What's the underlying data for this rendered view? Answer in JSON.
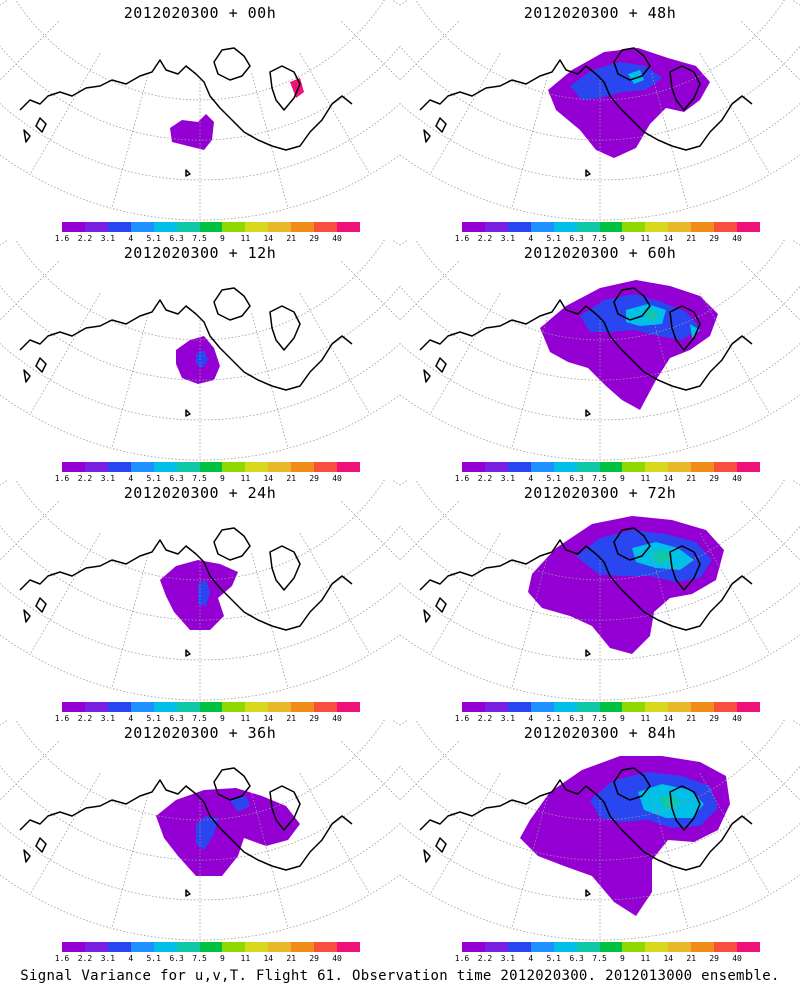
{
  "panels": [
    {
      "title": "2012020300 + 00h",
      "level": 0
    },
    {
      "title": "2012020300 + 48h",
      "level": 4
    },
    {
      "title": "2012020300 + 12h",
      "level": 1
    },
    {
      "title": "2012020300 + 60h",
      "level": 5
    },
    {
      "title": "2012020300 + 24h",
      "level": 2
    },
    {
      "title": "2012020300 + 72h",
      "level": 6
    },
    {
      "title": "2012020300 + 36h",
      "level": 3
    },
    {
      "title": "2012020300 + 84h",
      "level": 7
    }
  ],
  "colorbar": {
    "colors": [
      "#9400d3",
      "#7b1fe0",
      "#2946f0",
      "#1e90ff",
      "#00c0e8",
      "#10c8a8",
      "#00c040",
      "#8fd800",
      "#d8d820",
      "#e8b828",
      "#f08c18",
      "#f85040",
      "#f0107a"
    ],
    "labels": [
      "1.6",
      "2.2",
      "3.1",
      "4",
      "5.1",
      "6.3",
      "7.5",
      "9",
      "11",
      "14",
      "21",
      "29",
      "40"
    ]
  },
  "footer": "Signal Variance for u,v,T. Flight 61. Observation time 2012020300. 2012013000 ensemble.",
  "colors": {
    "purple": "#9400d3",
    "violet": "#7b1fe0",
    "blue": "#2946f0",
    "cyan": "#00c0e8",
    "teal": "#10c8a8",
    "magenta": "#f0107a"
  }
}
